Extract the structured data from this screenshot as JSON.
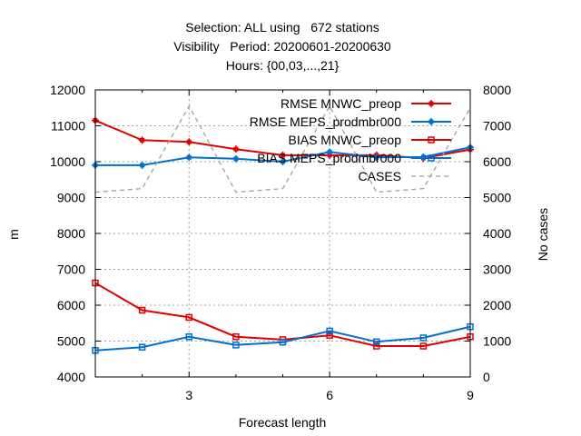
{
  "title_lines": [
    "Selection: ALL using   672 stations",
    "Visibility   Period: 20200601-20200630",
    "Hours: {00,03,...,21}"
  ],
  "chart_data": {
    "type": "line",
    "xlabel": "Forecast length",
    "ylabel": "m",
    "y2label": "No cases",
    "xlim": [
      1,
      9
    ],
    "ylim": [
      4000,
      12000
    ],
    "y2lim": [
      0,
      8000
    ],
    "xticks": [
      3,
      6,
      9
    ],
    "yticks": [
      4000,
      5000,
      6000,
      7000,
      8000,
      9000,
      10000,
      11000,
      12000
    ],
    "y2ticks": [
      0,
      1000,
      2000,
      3000,
      4000,
      5000,
      6000,
      7000,
      8000
    ],
    "grid": true,
    "legend_position": "top-right",
    "x": [
      1,
      2,
      3,
      4,
      5,
      6,
      7,
      8,
      9
    ],
    "series": [
      {
        "name": "RMSE MNWC_preop",
        "axis": "y1",
        "color": "#e00000",
        "marker": "plus-filled",
        "values": [
          11150,
          10600,
          10550,
          10350,
          10180,
          10180,
          10180,
          10100,
          10340
        ]
      },
      {
        "name": "RMSE MEPS_prodmbr000",
        "axis": "y1",
        "color": "#0070d0",
        "marker": "plus-filled",
        "values": [
          9900,
          9900,
          10120,
          10080,
          10000,
          10270,
          10120,
          10130,
          10400
        ]
      },
      {
        "name": "BIAS MNWC_preop",
        "axis": "y1",
        "color": "#e00000",
        "marker": "square-open",
        "values": [
          6620,
          5860,
          5660,
          5120,
          5040,
          5160,
          4860,
          4860,
          5120
        ]
      },
      {
        "name": "BIAS MEPS_prodmbr000",
        "axis": "y1",
        "color": "#0070d0",
        "marker": "square-open",
        "values": [
          4740,
          4830,
          5120,
          4890,
          4970,
          5280,
          4980,
          5090,
          5400
        ]
      },
      {
        "name": "CASES",
        "axis": "y2",
        "color": "#a0a0a0",
        "marker": "none",
        "dashed": true,
        "x": [
          1,
          2,
          3,
          4,
          5,
          6,
          7,
          8,
          9
        ],
        "values": [
          5150,
          5250,
          7550,
          5150,
          5250,
          7550,
          5150,
          5250,
          7500
        ]
      }
    ]
  }
}
